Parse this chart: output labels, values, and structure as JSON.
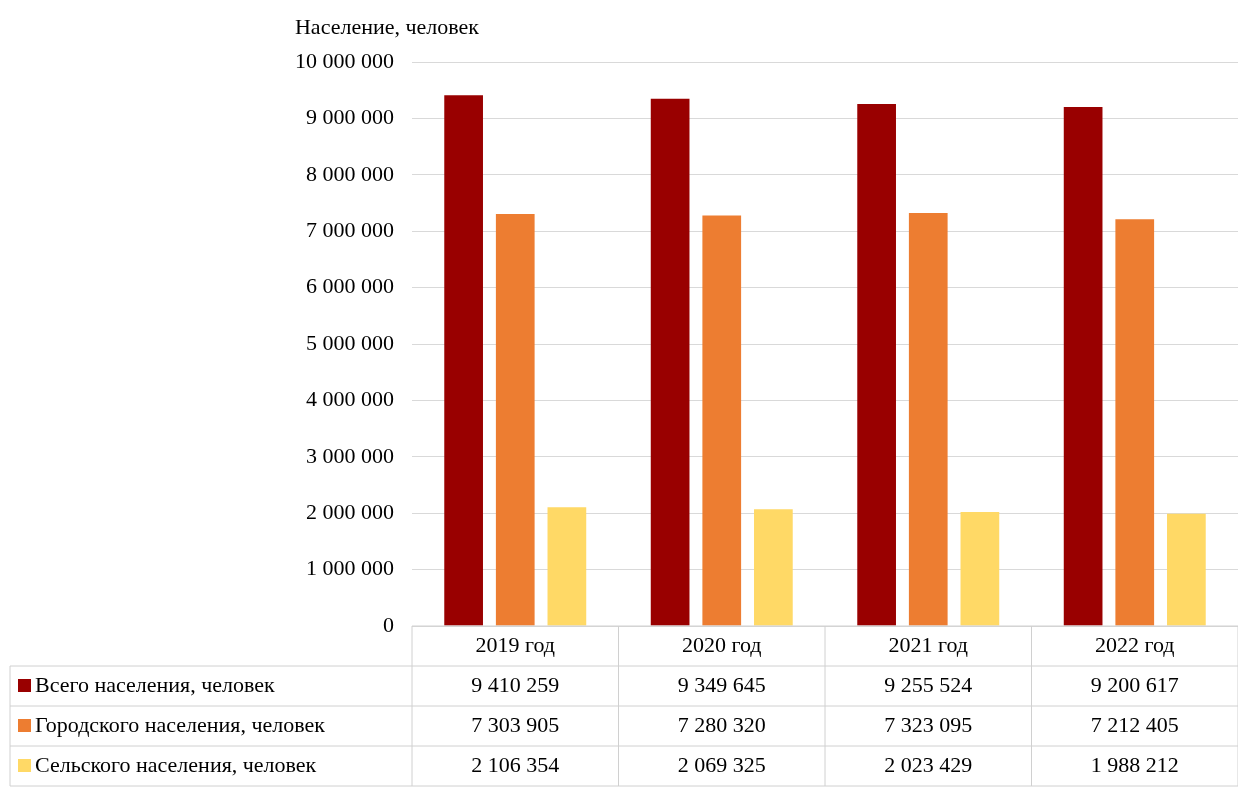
{
  "chart_data": {
    "type": "bar",
    "ylabel": "Население, человек",
    "categories": [
      "2019 год",
      "2020 год",
      "2021 год",
      "2022 год"
    ],
    "series": [
      {
        "name": "Всего населения, человек",
        "color": "#990000",
        "values": [
          9410259,
          9349645,
          9255524,
          9200617
        ],
        "value_labels": [
          "9 410 259",
          "9 349 645",
          "9 255 524",
          "9 200 617"
        ]
      },
      {
        "name": "Городского населения, человек",
        "color": "#ed7d31",
        "values": [
          7303905,
          7280320,
          7323095,
          7212405
        ],
        "value_labels": [
          "7 303 905",
          "7 280 320",
          "7 323 095",
          "7 212 405"
        ]
      },
      {
        "name": "Сельского населения, человек",
        "color": "#ffd966",
        "values": [
          2106354,
          2069325,
          2023429,
          1988212
        ],
        "value_labels": [
          "2 106 354",
          "2 069 325",
          "2 023 429",
          "1 988 212"
        ]
      }
    ],
    "ylim": [
      0,
      10000000
    ],
    "yticks": [
      {
        "value": 0,
        "label": "0"
      },
      {
        "value": 1000000,
        "label": "1 000 000"
      },
      {
        "value": 2000000,
        "label": "2 000 000"
      },
      {
        "value": 3000000,
        "label": "3 000 000"
      },
      {
        "value": 4000000,
        "label": "4 000 000"
      },
      {
        "value": 5000000,
        "label": "5 000 000"
      },
      {
        "value": 6000000,
        "label": "6 000 000"
      },
      {
        "value": 7000000,
        "label": "7 000 000"
      },
      {
        "value": 8000000,
        "label": "8 000 000"
      },
      {
        "value": 9000000,
        "label": "9 000 000"
      },
      {
        "value": 10000000,
        "label": "10 000 000"
      }
    ],
    "grid": "y",
    "legend": "bottom"
  }
}
